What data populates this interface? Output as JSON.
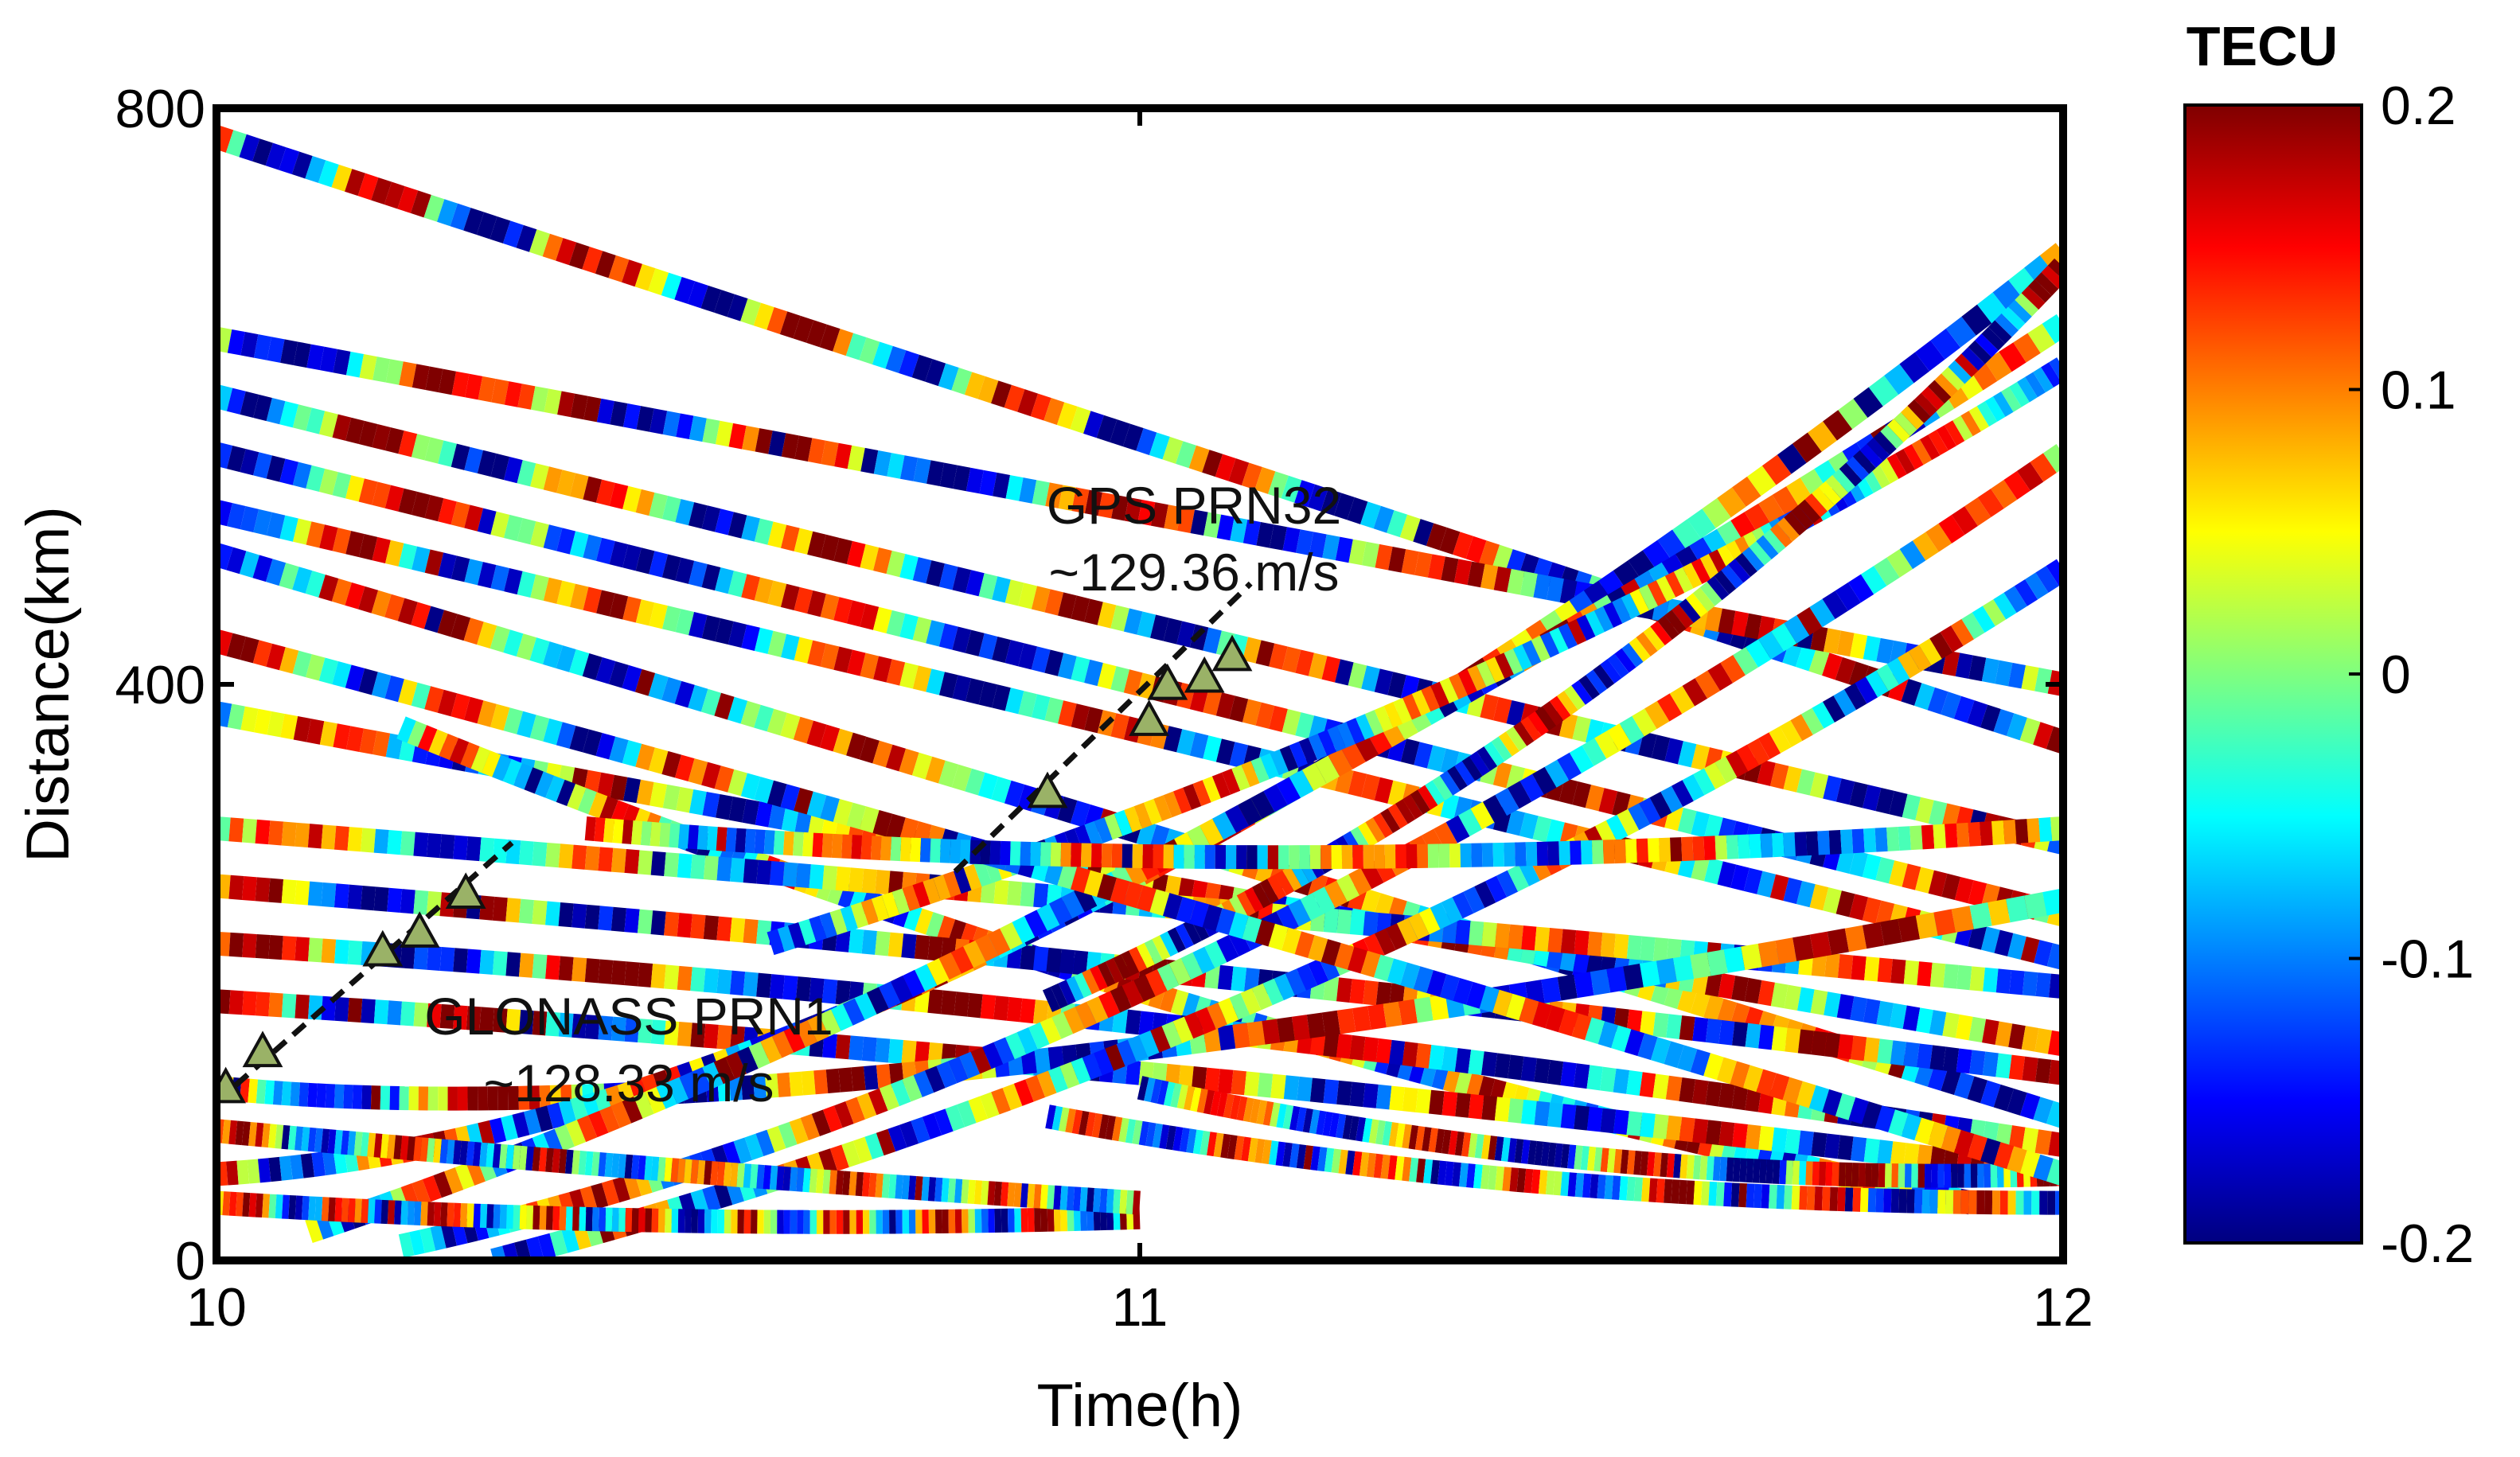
{
  "chart_data": {
    "type": "scatter",
    "title": "",
    "xlabel": "Time(h)",
    "ylabel": "Distance(km)",
    "xlim": [
      10,
      12
    ],
    "ylim": [
      0,
      800
    ],
    "xticks": [
      10,
      11,
      12
    ],
    "xtick_labels": [
      "10",
      "11",
      "12"
    ],
    "yticks": [
      0,
      400,
      800
    ],
    "ytick_labels": [
      "0",
      "400",
      "800"
    ],
    "grid": false,
    "colorbar": {
      "title": "TECU",
      "min": -0.2,
      "max": 0.2,
      "colormap": "jet",
      "ticks": [
        0.2,
        0.1,
        0,
        -0.1,
        -0.2
      ],
      "tick_labels": [
        "0.2",
        "0.1",
        "0",
        "-0.1",
        "-0.2"
      ]
    },
    "colors": {
      "jet_stops": [
        "#00007f",
        "#0000ff",
        "#007fff",
        "#00ffff",
        "#7fff7f",
        "#ffff00",
        "#ff7f00",
        "#ff0000",
        "#7f0000"
      ],
      "fit_line": "#111111",
      "marker_fill": "#9ab267",
      "frame": "#000000"
    },
    "annotations": [
      {
        "id": "gps",
        "text_line1": "GPS PRN32",
        "text_line2": "~129.36 m/s",
        "speed_mps": 129.36,
        "fit_line": [
          {
            "x": 10.8,
            "y": 270
          },
          {
            "x": 11.12,
            "y": 470
          }
        ],
        "markers": [
          {
            "x": 10.9,
            "y": 325
          },
          {
            "x": 11.01,
            "y": 375
          },
          {
            "x": 11.03,
            "y": 400
          },
          {
            "x": 11.07,
            "y": 405
          },
          {
            "x": 11.1,
            "y": 420
          }
        ]
      },
      {
        "id": "glonass",
        "text_line1": "GLONASS PRN1",
        "text_line2": "~128.33 m/s",
        "speed_mps": 128.33,
        "fit_line": [
          {
            "x": 10.0,
            "y": 110
          },
          {
            "x": 10.32,
            "y": 290
          }
        ],
        "markers": [
          {
            "x": 10.01,
            "y": 120
          },
          {
            "x": 10.05,
            "y": 145
          },
          {
            "x": 10.18,
            "y": 215
          },
          {
            "x": 10.22,
            "y": 228
          },
          {
            "x": 10.27,
            "y": 255
          }
        ]
      }
    ],
    "tracks": [
      {
        "x": [
          10.0,
          11.0,
          12.0
        ],
        "y": [
          780,
          570,
          360
        ],
        "seed": 1
      },
      {
        "x": [
          10.0,
          11.0,
          12.0
        ],
        "y": [
          640,
          520,
          400
        ],
        "seed": 2
      },
      {
        "x": [
          10.0,
          11.0,
          12.0
        ],
        "y": [
          600,
          440,
          290
        ],
        "seed": 3
      },
      {
        "x": [
          10.0,
          11.0,
          12.0
        ],
        "y": [
          560,
          400,
          240
        ],
        "seed": 4
      },
      {
        "x": [
          10.0,
          11.0,
          12.0
        ],
        "y": [
          520,
          370,
          210
        ],
        "seed": 5
      },
      {
        "x": [
          10.0,
          11.0,
          12.0
        ],
        "y": [
          490,
          300,
          100
        ],
        "seed": 6
      },
      {
        "x": [
          10.0,
          11.0,
          12.0
        ],
        "y": [
          380,
          260,
          150
        ],
        "seed": 7
      },
      {
        "x": [
          10.2,
          11.0,
          11.9
        ],
        "y": [
          370,
          160,
          40
        ],
        "seed": 8
      },
      {
        "x": [
          10.0,
          11.0,
          12.0
        ],
        "y": [
          300,
          250,
          190
        ],
        "seed": 9
      },
      {
        "x": [
          10.0,
          11.0,
          12.0
        ],
        "y": [
          260,
          210,
          130
        ],
        "seed": 10
      },
      {
        "x": [
          10.0,
          11.0,
          12.0
        ],
        "y": [
          220,
          180,
          80
        ],
        "seed": 11
      },
      {
        "x": [
          10.0,
          11.0,
          12.0
        ],
        "y": [
          180,
          140,
          60
        ],
        "seed": 12
      },
      {
        "x": [
          10.0,
          10.6,
          12.0
        ],
        "y": [
          120,
          80,
          250
        ],
        "seed": 13
      },
      {
        "x": [
          10.0,
          10.8,
          12.0
        ],
        "y": [
          60,
          90,
          700
        ],
        "seed": 14
      },
      {
        "x": [
          10.1,
          10.9,
          12.0
        ],
        "y": [
          20,
          190,
          650
        ],
        "seed": 15
      },
      {
        "x": [
          10.2,
          11.0,
          12.0
        ],
        "y": [
          10,
          120,
          560
        ],
        "seed": 16
      },
      {
        "x": [
          10.3,
          11.2,
          12.0
        ],
        "y": [
          0,
          150,
          480
        ],
        "seed": 17
      },
      {
        "x": [
          10.6,
          11.4,
          12.0
        ],
        "y": [
          220,
          380,
          620
        ],
        "seed": 18
      },
      {
        "x": [
          10.9,
          11.5,
          12.0
        ],
        "y": [
          180,
          350,
          690
        ],
        "seed": 19
      },
      {
        "x": [
          11.0,
          11.5,
          12.0
        ],
        "y": [
          120,
          50,
          60
        ],
        "seed": 20
      },
      {
        "x": [
          10.9,
          11.4,
          12.0
        ],
        "y": [
          100,
          40,
          40
        ],
        "seed": 21
      },
      {
        "x": [
          10.0,
          10.5,
          11.0
        ],
        "y": [
          40,
          20,
          30
        ],
        "seed": 22
      },
      {
        "x": [
          10.0,
          10.5,
          11.0
        ],
        "y": [
          90,
          60,
          40
        ],
        "seed": 23
      },
      {
        "x": [
          10.0,
          11.0,
          12.0
        ],
        "y": [
          430,
          260,
          60
        ],
        "seed": 24
      },
      {
        "x": [
          10.4,
          11.1,
          12.0
        ],
        "y": [
          300,
          260,
          300
        ],
        "seed": 25
      }
    ]
  }
}
